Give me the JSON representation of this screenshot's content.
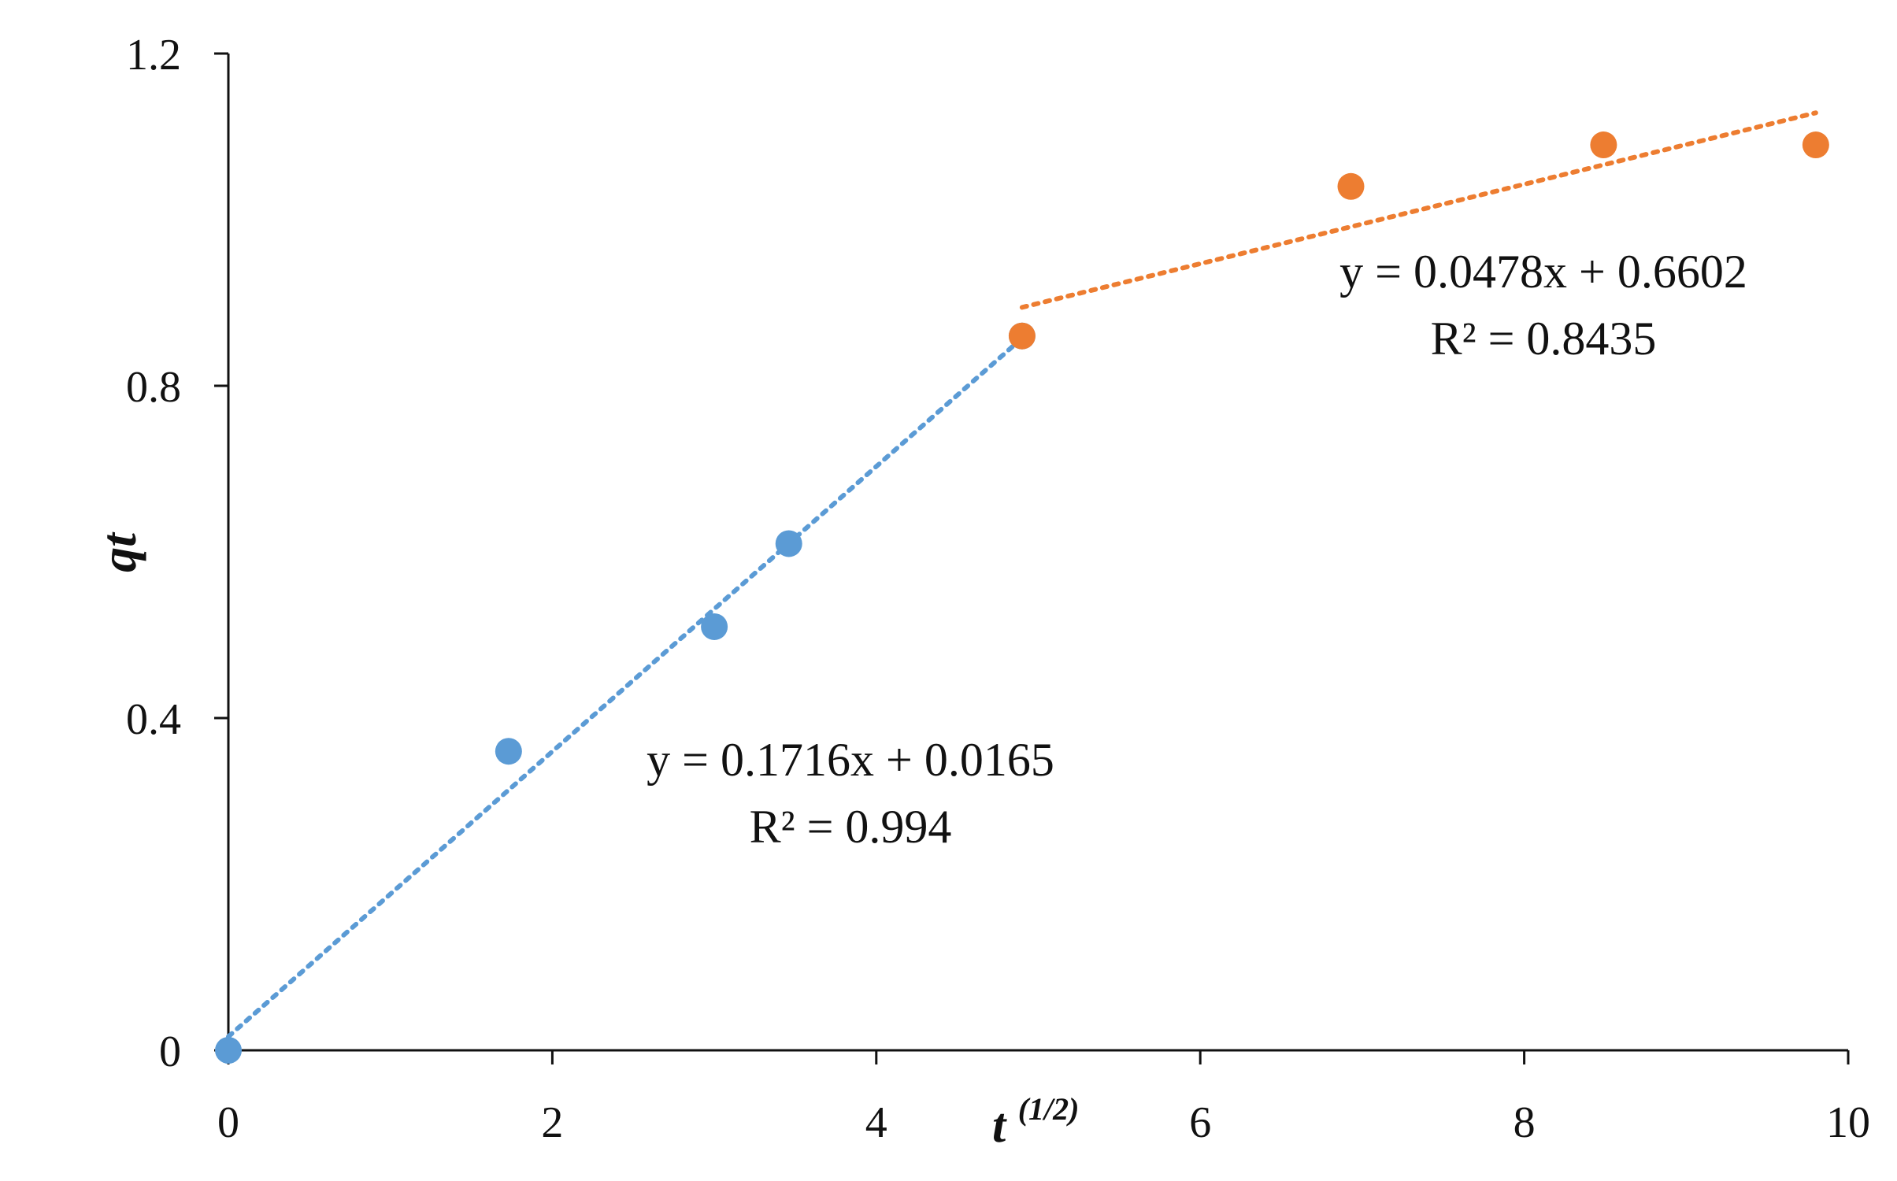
{
  "chart_data": {
    "type": "scatter",
    "xlabel": "t",
    "xlabel_sup": "(1/2)",
    "ylabel": "qt",
    "xlim": [
      0,
      10
    ],
    "ylim": [
      0,
      1.2
    ],
    "x_ticks": [
      0,
      2,
      4,
      6,
      8,
      10
    ],
    "y_ticks": [
      0,
      0.4,
      0.8,
      1.2
    ],
    "x_tick_labels": [
      "0",
      "2",
      "4",
      "6",
      "8",
      "10"
    ],
    "y_tick_labels": [
      "0",
      "0.4",
      "0.8",
      "1.2"
    ],
    "grid": false,
    "series": [
      {
        "color": "#5b9bd5",
        "points": [
          [
            0,
            0
          ],
          [
            1.73,
            0.36
          ],
          [
            3.0,
            0.51
          ],
          [
            3.46,
            0.61
          ],
          [
            4.9,
            0.86
          ]
        ],
        "trendline": {
          "slope": 0.1716,
          "intercept": 0.0165,
          "x_range": [
            0,
            4.9
          ]
        },
        "equation": "y = 0.1716x + 0.0165",
        "r2": "R² = 0.994"
      },
      {
        "color": "#ed7d31",
        "points": [
          [
            4.9,
            0.86
          ],
          [
            6.93,
            1.04
          ],
          [
            8.49,
            1.09
          ],
          [
            9.8,
            1.09
          ]
        ],
        "trendline": {
          "slope": 0.0478,
          "intercept": 0.6602,
          "x_range": [
            4.9,
            9.8
          ]
        },
        "equation": "y = 0.0478x + 0.6602",
        "r2": "R² = 0.8435"
      }
    ]
  }
}
